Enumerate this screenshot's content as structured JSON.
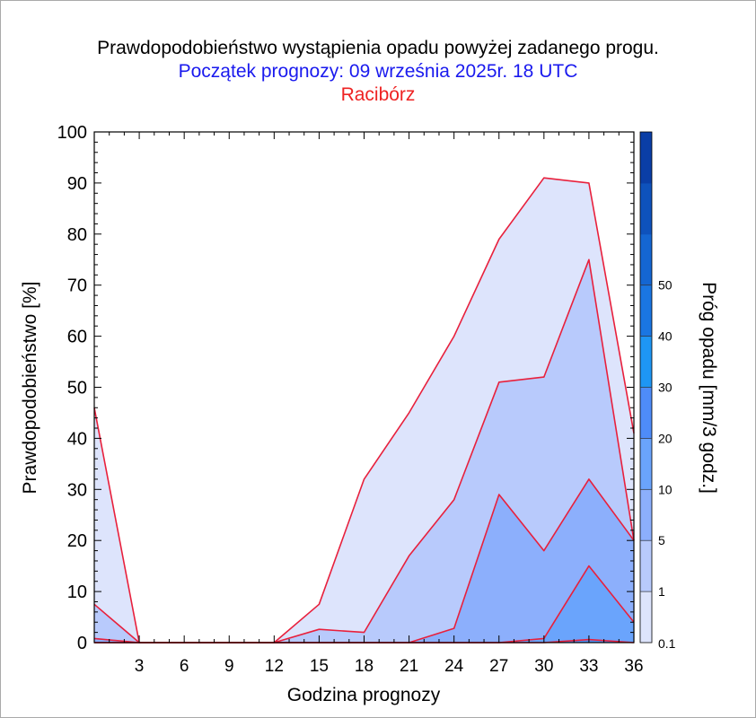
{
  "colors": {
    "outline": "#e8203c",
    "title": "#000000",
    "subtitle": "#1a1aee",
    "location": "#ee2222"
  },
  "chart_data": {
    "type": "area",
    "title": "Prawdopodobieństwo wystąpienia opadu powyżej zadanego progu.",
    "subtitle": "Początek prognozy: 09 września 2025r. 18 UTC",
    "location": "Racibórz",
    "xlabel": "Godzina prognozy",
    "ylabel": "Prawdopodobieństwo [%]",
    "xlim": [
      0,
      36
    ],
    "ylim": [
      0,
      100
    ],
    "x_ticks": [
      3,
      6,
      9,
      12,
      15,
      18,
      21,
      24,
      27,
      30,
      33,
      36
    ],
    "y_ticks": [
      0,
      10,
      20,
      30,
      40,
      50,
      60,
      70,
      80,
      90,
      100
    ],
    "x": [
      0,
      3,
      6,
      9,
      12,
      15,
      18,
      21,
      24,
      27,
      30,
      33,
      36
    ],
    "series": [
      {
        "threshold": "0.1",
        "color": "#dde4fc",
        "values": [
          46,
          0,
          0,
          0,
          0,
          7.5,
          32,
          45,
          60,
          79,
          91,
          90,
          41
        ]
      },
      {
        "threshold": "1",
        "color": "#b8cafc",
        "values": [
          7.5,
          0,
          0,
          0,
          0,
          2.6,
          2,
          17,
          28,
          51,
          52,
          75,
          20
        ]
      },
      {
        "threshold": "5",
        "color": "#8caffc",
        "values": [
          0.8,
          0,
          0,
          0,
          0,
          0,
          0,
          0,
          2.8,
          29,
          18,
          32,
          20
        ]
      },
      {
        "threshold": "10",
        "color": "#6aa4fc",
        "values": [
          0,
          0,
          0,
          0,
          0,
          0,
          0,
          0,
          0,
          0,
          0.8,
          15,
          4
        ]
      },
      {
        "threshold": "20",
        "color": "#5293f8",
        "values": [
          0,
          0,
          0,
          0,
          0,
          0,
          0,
          0,
          0,
          0,
          0,
          0.6,
          0
        ]
      }
    ],
    "colorbar": {
      "label": "Próg opadu [mm/3 godz.]",
      "labels": [
        "0.1",
        "1",
        "5",
        "10",
        "20",
        "30",
        "40",
        "50"
      ],
      "colors": [
        "#dde4fc",
        "#b8cafc",
        "#8caffc",
        "#6aa4fc",
        "#4e8cf8",
        "#1e96f4",
        "#1a76e2",
        "#1466d2",
        "#0e52bc",
        "#0a3ea6"
      ]
    }
  }
}
